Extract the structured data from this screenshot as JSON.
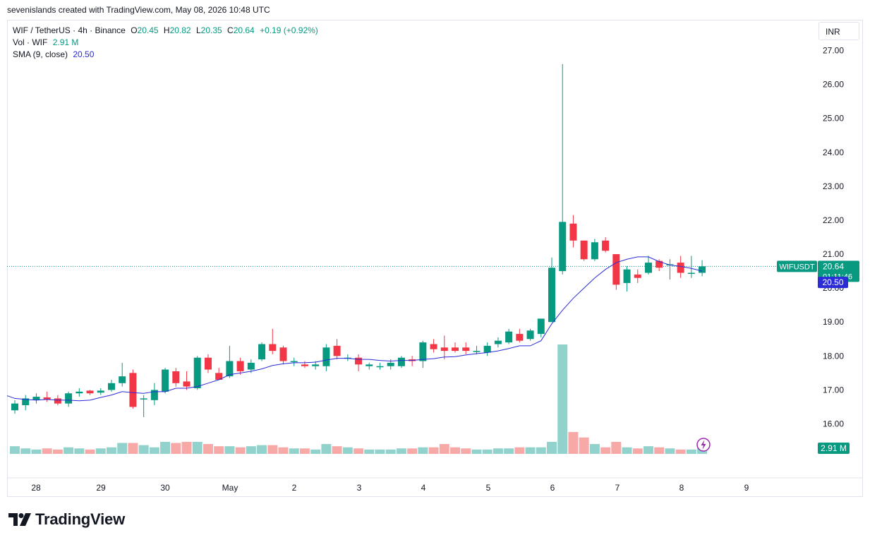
{
  "credit": "sevenislands created with TradingView.com, May 08, 2026 10:48 UTC",
  "legend": {
    "symbol": "WIF / TetherUS · 4h · Binance",
    "o_label": "O",
    "o_value": "20.45",
    "h_label": "H",
    "h_value": "20.82",
    "l_label": "L",
    "l_value": "20.35",
    "c_label": "C",
    "c_value": "20.64",
    "change": "+0.19 (+0.92%)",
    "vol_label": "Vol · WIF",
    "vol_value": "2.91 M",
    "sma_label": "SMA (9, close)",
    "sma_value": "20.50"
  },
  "currency": "INR",
  "brand": "TradingView",
  "colors": {
    "up": "#089981",
    "down": "#f23645",
    "up_vol": "#92d2cc",
    "down_vol": "#f7a9a7",
    "sma": "#2b2bd8",
    "accent": "#2962ff"
  },
  "chart_data": {
    "type": "candlestick",
    "timeframe": "4h",
    "ylim": [
      15.4,
      27.4
    ],
    "y_ticks": [
      "27.00",
      "26.00",
      "25.00",
      "24.00",
      "23.00",
      "22.00",
      "21.00",
      "20.00",
      "19.00",
      "18.00",
      "17.00",
      "16.00"
    ],
    "x_ticks": [
      "28",
      "29",
      "30",
      "May",
      "2",
      "3",
      "4",
      "5",
      "6",
      "7",
      "8",
      "9"
    ],
    "last_price_label": {
      "symbol": "WIFUSDT",
      "price": "20.64",
      "countdown": "01:11:46"
    },
    "sma_label": "20.50",
    "volume_label": "2.91 M",
    "candles": [
      {
        "o": 16.4,
        "h": 16.7,
        "l": 16.3,
        "c": 16.6
      },
      {
        "o": 16.55,
        "h": 16.85,
        "l": 16.4,
        "c": 16.75
      },
      {
        "o": 16.7,
        "h": 16.9,
        "l": 16.6,
        "c": 16.8
      },
      {
        "o": 16.78,
        "h": 16.95,
        "l": 16.65,
        "c": 16.72
      },
      {
        "o": 16.75,
        "h": 16.85,
        "l": 16.55,
        "c": 16.6
      },
      {
        "o": 16.6,
        "h": 16.95,
        "l": 16.5,
        "c": 16.9
      },
      {
        "o": 16.9,
        "h": 17.05,
        "l": 16.8,
        "c": 16.95
      },
      {
        "o": 16.98,
        "h": 17.0,
        "l": 16.85,
        "c": 16.9
      },
      {
        "o": 16.92,
        "h": 17.05,
        "l": 16.85,
        "c": 16.98
      },
      {
        "o": 17.0,
        "h": 17.3,
        "l": 16.95,
        "c": 17.2
      },
      {
        "o": 17.2,
        "h": 17.8,
        "l": 17.1,
        "c": 17.4
      },
      {
        "o": 17.5,
        "h": 17.6,
        "l": 16.45,
        "c": 16.5
      },
      {
        "o": 16.75,
        "h": 16.85,
        "l": 16.2,
        "c": 16.75
      },
      {
        "o": 16.7,
        "h": 17.2,
        "l": 16.55,
        "c": 17.0
      },
      {
        "o": 16.95,
        "h": 17.65,
        "l": 16.9,
        "c": 17.6
      },
      {
        "o": 17.55,
        "h": 17.65,
        "l": 17.1,
        "c": 17.2
      },
      {
        "o": 17.25,
        "h": 17.55,
        "l": 17.0,
        "c": 17.1
      },
      {
        "o": 17.05,
        "h": 18.0,
        "l": 17.0,
        "c": 17.95
      },
      {
        "o": 17.95,
        "h": 18.05,
        "l": 17.5,
        "c": 17.6
      },
      {
        "o": 17.5,
        "h": 17.65,
        "l": 17.3,
        "c": 17.3
      },
      {
        "o": 17.4,
        "h": 18.3,
        "l": 17.35,
        "c": 17.85
      },
      {
        "o": 17.85,
        "h": 17.95,
        "l": 17.45,
        "c": 17.55
      },
      {
        "o": 17.6,
        "h": 17.9,
        "l": 17.5,
        "c": 17.8
      },
      {
        "o": 17.9,
        "h": 18.4,
        "l": 17.85,
        "c": 18.35
      },
      {
        "o": 18.35,
        "h": 18.8,
        "l": 18.05,
        "c": 18.15
      },
      {
        "o": 18.25,
        "h": 18.3,
        "l": 17.75,
        "c": 17.85
      },
      {
        "o": 17.82,
        "h": 17.95,
        "l": 17.7,
        "c": 17.85
      },
      {
        "o": 17.75,
        "h": 17.85,
        "l": 17.65,
        "c": 17.7
      },
      {
        "o": 17.7,
        "h": 17.85,
        "l": 17.6,
        "c": 17.75
      },
      {
        "o": 17.7,
        "h": 18.35,
        "l": 17.55,
        "c": 18.25
      },
      {
        "o": 18.3,
        "h": 18.5,
        "l": 17.9,
        "c": 18.0
      },
      {
        "o": 17.95,
        "h": 18.05,
        "l": 17.85,
        "c": 17.95
      },
      {
        "o": 17.95,
        "h": 18.05,
        "l": 17.55,
        "c": 17.75
      },
      {
        "o": 17.7,
        "h": 17.8,
        "l": 17.6,
        "c": 17.75
      },
      {
        "o": 17.7,
        "h": 17.8,
        "l": 17.6,
        "c": 17.7
      },
      {
        "o": 17.7,
        "h": 17.9,
        "l": 17.6,
        "c": 17.8
      },
      {
        "o": 17.7,
        "h": 18.0,
        "l": 17.65,
        "c": 17.95
      },
      {
        "o": 17.9,
        "h": 18.0,
        "l": 17.7,
        "c": 17.85
      },
      {
        "o": 17.85,
        "h": 18.45,
        "l": 17.65,
        "c": 18.4
      },
      {
        "o": 18.35,
        "h": 18.5,
        "l": 18.1,
        "c": 18.2
      },
      {
        "o": 18.25,
        "h": 18.6,
        "l": 17.9,
        "c": 18.15
      },
      {
        "o": 18.25,
        "h": 18.4,
        "l": 18.1,
        "c": 18.15
      },
      {
        "o": 18.25,
        "h": 18.4,
        "l": 18.05,
        "c": 18.15
      },
      {
        "o": 18.15,
        "h": 18.3,
        "l": 18.05,
        "c": 18.15
      },
      {
        "o": 18.1,
        "h": 18.4,
        "l": 18.0,
        "c": 18.3
      },
      {
        "o": 18.35,
        "h": 18.55,
        "l": 18.25,
        "c": 18.45
      },
      {
        "o": 18.4,
        "h": 18.8,
        "l": 18.35,
        "c": 18.72
      },
      {
        "o": 18.65,
        "h": 18.8,
        "l": 18.4,
        "c": 18.45
      },
      {
        "o": 18.5,
        "h": 18.8,
        "l": 18.45,
        "c": 18.75
      },
      {
        "o": 18.65,
        "h": 19.1,
        "l": 18.55,
        "c": 19.1
      },
      {
        "o": 19.0,
        "h": 20.9,
        "l": 19.0,
        "c": 20.6
      },
      {
        "o": 20.5,
        "h": 26.6,
        "l": 20.4,
        "c": 21.95
      },
      {
        "o": 21.9,
        "h": 22.15,
        "l": 21.2,
        "c": 21.4
      },
      {
        "o": 21.4,
        "h": 21.4,
        "l": 20.8,
        "c": 20.85
      },
      {
        "o": 20.85,
        "h": 21.45,
        "l": 20.8,
        "c": 21.35
      },
      {
        "o": 21.4,
        "h": 21.5,
        "l": 21.05,
        "c": 21.1
      },
      {
        "o": 21.0,
        "h": 21.0,
        "l": 19.95,
        "c": 20.1
      },
      {
        "o": 20.15,
        "h": 20.65,
        "l": 19.9,
        "c": 20.55
      },
      {
        "o": 20.4,
        "h": 20.55,
        "l": 20.15,
        "c": 20.3
      },
      {
        "o": 20.45,
        "h": 20.95,
        "l": 20.4,
        "c": 20.75
      },
      {
        "o": 20.8,
        "h": 20.85,
        "l": 20.5,
        "c": 20.6
      },
      {
        "o": 20.7,
        "h": 20.85,
        "l": 20.25,
        "c": 20.7
      },
      {
        "o": 20.75,
        "h": 20.95,
        "l": 20.3,
        "c": 20.45
      },
      {
        "o": 20.45,
        "h": 20.95,
        "l": 20.3,
        "c": 20.45
      },
      {
        "o": 20.45,
        "h": 20.82,
        "l": 20.35,
        "c": 20.64
      }
    ],
    "volume_scale": [
      0,
      100
    ],
    "volumes": [
      7,
      5,
      4,
      5,
      4,
      6,
      5,
      4,
      5,
      6,
      10,
      10,
      8,
      6,
      11,
      10,
      11,
      11,
      9,
      7,
      7,
      6,
      7,
      8,
      8,
      6,
      5,
      5,
      4,
      9,
      7,
      6,
      5,
      4,
      4,
      4,
      5,
      5,
      6,
      6,
      9,
      6,
      5,
      4,
      4,
      5,
      5,
      6,
      6,
      6,
      11,
      100,
      20,
      15,
      9,
      6,
      11,
      6,
      5,
      7,
      6,
      5,
      4,
      4,
      5
    ],
    "sma": [
      16.75,
      16.72,
      16.7,
      16.72,
      16.7,
      16.7,
      16.68,
      16.7,
      16.78,
      16.85,
      16.95,
      16.92,
      16.9,
      16.95,
      16.95,
      17.05,
      17.05,
      17.1,
      17.2,
      17.3,
      17.45,
      17.5,
      17.55,
      17.62,
      17.72,
      17.77,
      17.8,
      17.8,
      17.82,
      17.88,
      17.93,
      17.93,
      17.9,
      17.9,
      17.87,
      17.85,
      17.87,
      17.87,
      17.9,
      17.92,
      17.97,
      17.98,
      18.03,
      18.07,
      18.1,
      18.15,
      18.22,
      18.3,
      18.3,
      18.45,
      18.95,
      19.35,
      19.7,
      20.0,
      20.3,
      20.55,
      20.75,
      20.85,
      20.92,
      20.92,
      20.78,
      20.68,
      20.64,
      20.58,
      20.5
    ]
  }
}
